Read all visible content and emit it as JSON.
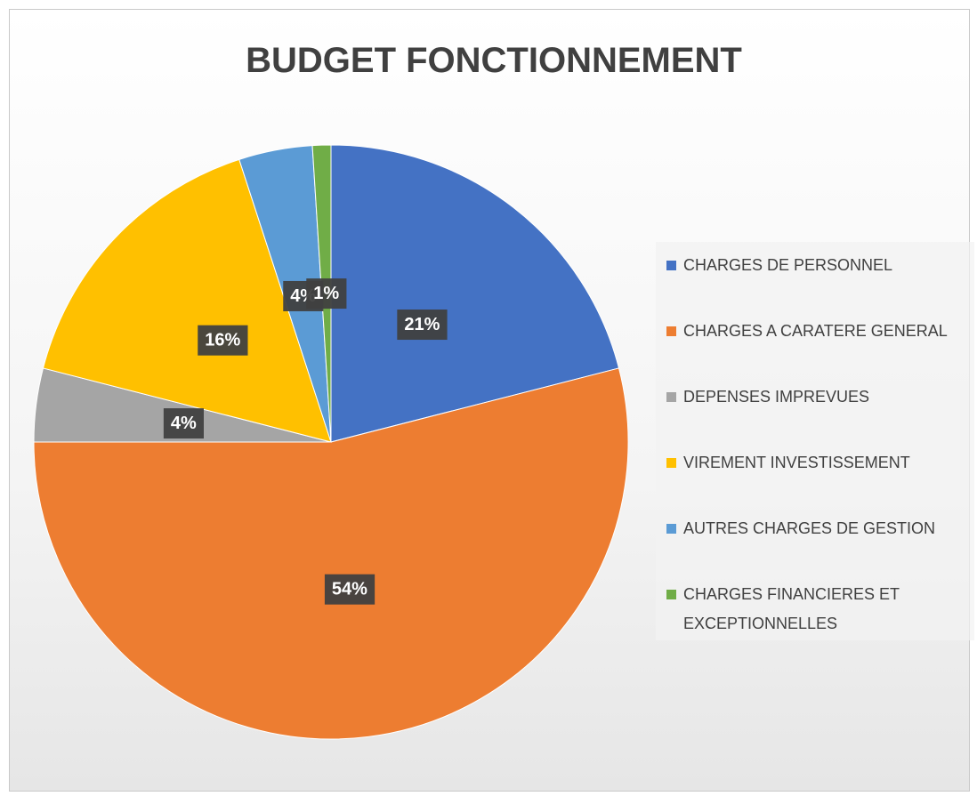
{
  "chart_data": {
    "type": "pie",
    "title": "BUDGET FONCTIONNEMENT",
    "categories": [
      "CHARGES DE PERSONNEL",
      "CHARGES A CARATERE GENERAL",
      "DEPENSES IMPREVUES",
      "VIREMENT INVESTISSEMENT",
      "AUTRES CHARGES DE GESTION",
      "CHARGES FINANCIERES ET EXCEPTIONNELLES"
    ],
    "values": [
      21,
      54,
      4,
      16,
      4,
      1
    ],
    "value_labels": [
      "21%",
      "54%",
      "4%",
      "16%",
      "4%",
      "1%"
    ],
    "colors": [
      "#4472c4",
      "#ed7d31",
      "#a5a5a5",
      "#ffc000",
      "#5b9bd5",
      "#70ad47"
    ],
    "legend": "right"
  }
}
